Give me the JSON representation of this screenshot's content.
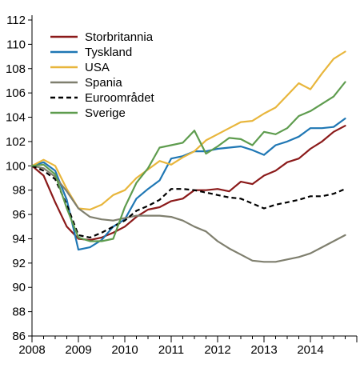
{
  "chart_data": {
    "type": "line",
    "title": "",
    "xlabel": "",
    "ylabel": "",
    "xlim": [
      2008,
      2015
    ],
    "ylim": [
      86,
      112
    ],
    "x_ticks": [
      "2008",
      "2009",
      "2010",
      "2011",
      "2012",
      "2013",
      "2014"
    ],
    "y_ticks": [
      "86",
      "88",
      "90",
      "92",
      "94",
      "96",
      "98",
      "100",
      "102",
      "104",
      "106",
      "108",
      "110",
      "112"
    ],
    "grid": false,
    "legend_position": "top-left",
    "x": [
      2008.0,
      2008.25,
      2008.5,
      2008.75,
      2009.0,
      2009.25,
      2009.5,
      2009.75,
      2010.0,
      2010.25,
      2010.5,
      2010.75,
      2011.0,
      2011.25,
      2011.5,
      2011.75,
      2012.0,
      2012.25,
      2012.5,
      2012.75,
      2013.0,
      2013.25,
      2013.5,
      2013.75,
      2014.0,
      2014.25,
      2014.5,
      2014.75
    ],
    "series": [
      {
        "name": "Storbritannia",
        "color": "#8b1a1a",
        "dash": "solid",
        "values": [
          100.0,
          99.2,
          97.0,
          95.0,
          94.0,
          93.9,
          94.1,
          94.5,
          95.0,
          95.8,
          96.4,
          96.6,
          97.1,
          97.3,
          98.0,
          98.0,
          98.1,
          97.9,
          98.7,
          98.5,
          99.2,
          99.6,
          100.3,
          100.6,
          101.4,
          102.0,
          102.8,
          103.3
        ]
      },
      {
        "name": "Tyskland",
        "color": "#1f77b4",
        "dash": "solid",
        "values": [
          100.0,
          100.3,
          99.6,
          97.2,
          93.1,
          93.3,
          93.9,
          95.0,
          95.6,
          97.3,
          98.1,
          98.8,
          100.6,
          100.8,
          101.2,
          101.2,
          101.4,
          101.5,
          101.6,
          101.3,
          100.9,
          101.7,
          102.0,
          102.4,
          103.1,
          103.1,
          103.2,
          103.9
        ]
      },
      {
        "name": "USA",
        "color": "#e8b63c",
        "dash": "solid",
        "values": [
          100.0,
          100.5,
          100.0,
          98.1,
          96.5,
          96.4,
          96.8,
          97.6,
          98.0,
          99.0,
          99.7,
          100.4,
          100.1,
          100.7,
          101.2,
          102.1,
          102.6,
          103.1,
          103.6,
          103.7,
          104.3,
          104.8,
          105.8,
          106.8,
          106.3,
          107.6,
          108.8,
          109.4
        ]
      },
      {
        "name": "Spania",
        "color": "#7f7f6e",
        "dash": "solid",
        "values": [
          100.0,
          99.8,
          99.1,
          97.9,
          96.5,
          95.8,
          95.6,
          95.5,
          95.7,
          95.9,
          95.9,
          95.9,
          95.8,
          95.5,
          95.0,
          94.6,
          93.8,
          93.2,
          92.7,
          92.2,
          92.1,
          92.1,
          92.3,
          92.5,
          92.8,
          93.3,
          93.8,
          94.3
        ]
      },
      {
        "name": "Euroområdet",
        "color": "#000000",
        "dash": "dashed",
        "values": [
          100.0,
          99.6,
          98.9,
          96.8,
          94.3,
          94.1,
          94.5,
          95.0,
          95.5,
          96.3,
          96.7,
          97.2,
          98.1,
          98.1,
          98.0,
          97.8,
          97.6,
          97.4,
          97.3,
          96.9,
          96.5,
          96.8,
          97.0,
          97.2,
          97.5,
          97.5,
          97.7,
          98.1
        ]
      },
      {
        "name": "Sverige",
        "color": "#5e9c4e",
        "dash": "solid",
        "values": [
          100.0,
          100.1,
          99.3,
          96.5,
          94.1,
          93.8,
          93.8,
          94.0,
          96.6,
          98.6,
          99.8,
          101.5,
          101.7,
          101.9,
          102.9,
          101.0,
          101.6,
          102.3,
          102.2,
          101.7,
          102.8,
          102.6,
          103.1,
          104.1,
          104.5,
          105.1,
          105.7,
          106.9
        ]
      }
    ]
  }
}
